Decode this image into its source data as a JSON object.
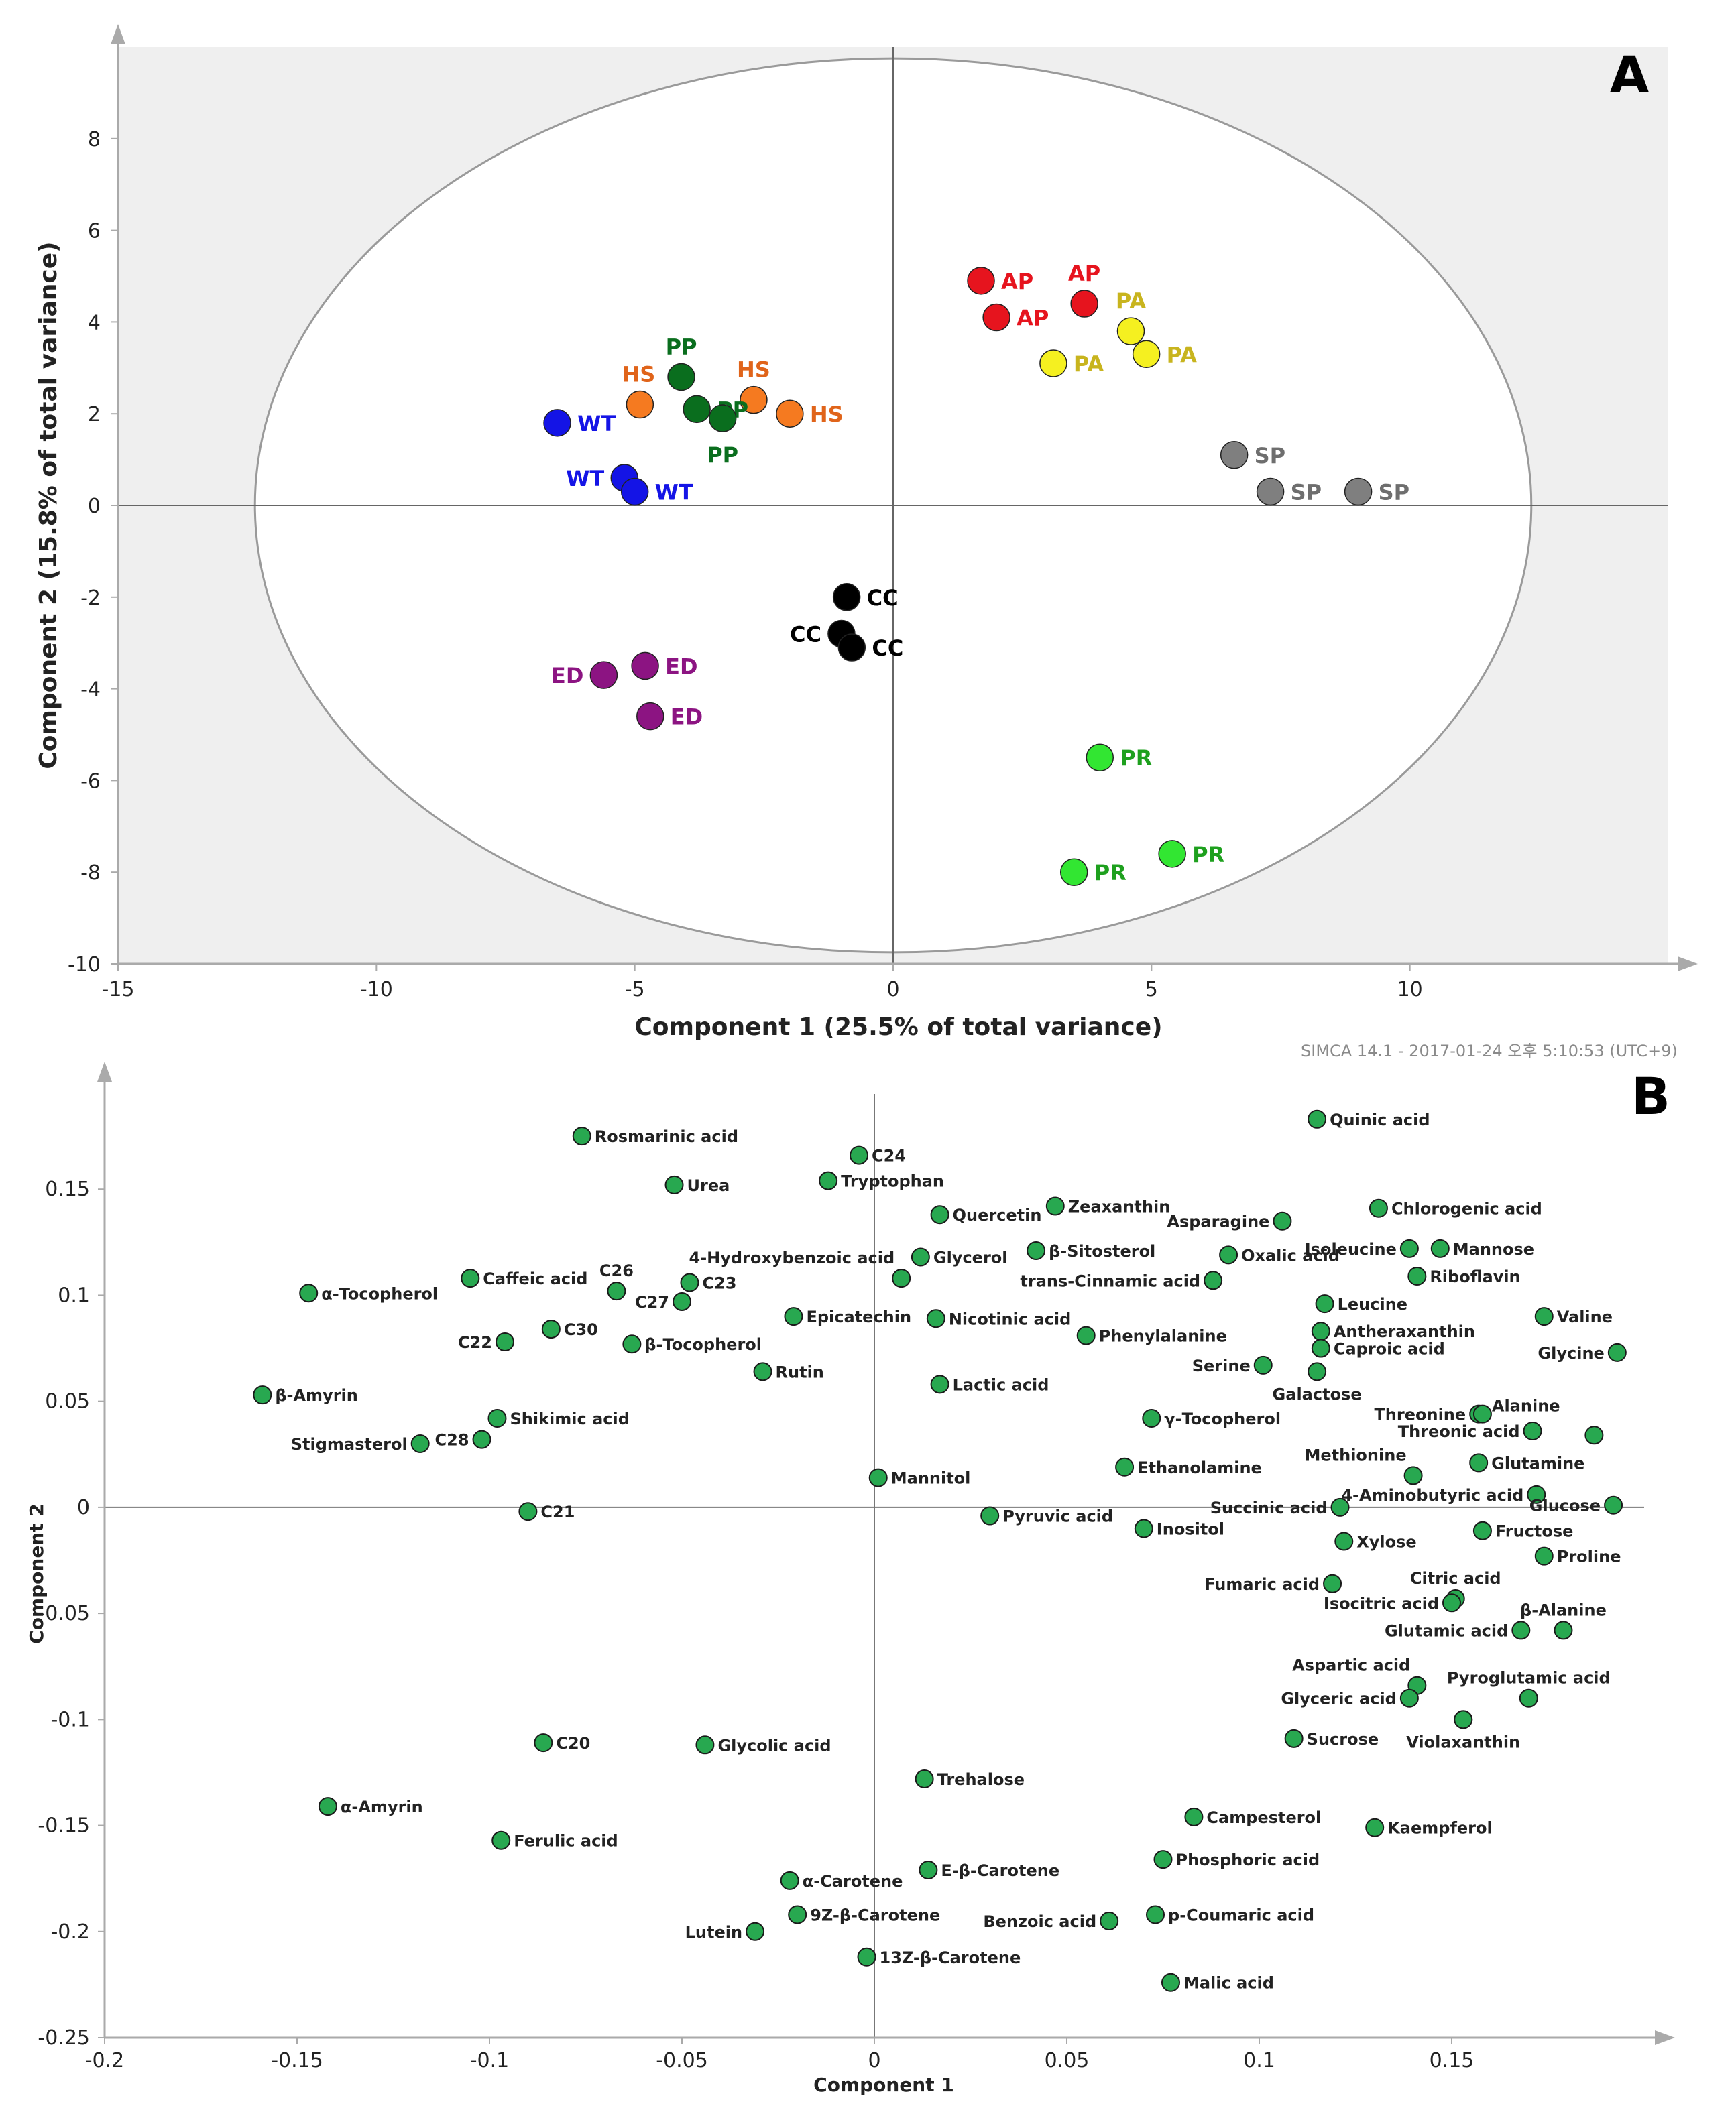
{
  "chart_data": [
    {
      "type": "scatter",
      "panel_label": "A",
      "title": "",
      "xlabel": "Component 1 (25.5% of total variance)",
      "ylabel": "Component 2 (15.8% of total variance)",
      "xlim": [
        -15,
        15
      ],
      "ylim": [
        -10,
        10
      ],
      "xticks": [
        -15,
        -10,
        -5,
        0,
        5,
        10
      ],
      "yticks": [
        8,
        6,
        4,
        2,
        0,
        -2,
        -4,
        -6,
        -8,
        -10
      ],
      "footer": "SIMCA 14.1 - 2017-01-24 오후 5:10:53 (UTC+9)",
      "ellipse": {
        "center": [
          0,
          0
        ],
        "radius_x": 12.35,
        "radius_y": 9.75
      },
      "colors": {
        "WT": "#1414e6",
        "HS": "#f57a20",
        "PP": "#0a6e1e",
        "AP": "#e6141e",
        "PA": "#f5f020",
        "SP": "#7f7f7f",
        "CC": "#000000",
        "ED": "#8c1482",
        "PR": "#32e632"
      },
      "label_colors": {
        "WT": "#1414e6",
        "HS": "#e0641a",
        "PP": "#0a6e1e",
        "AP": "#e6141e",
        "PA": "#c8b41e",
        "SP": "#6e6e6e",
        "CC": "#000000",
        "ED": "#8c1482",
        "PR": "#1ea01e"
      },
      "points": [
        {
          "group": "WT",
          "x": -6.5,
          "y": 1.8,
          "label": "WT",
          "side": "right"
        },
        {
          "group": "WT",
          "x": -5.2,
          "y": 0.6,
          "label": "WT",
          "side": "left"
        },
        {
          "group": "WT",
          "x": -5.0,
          "y": 0.3,
          "label": "WT",
          "side": "right"
        },
        {
          "group": "HS",
          "x": -4.9,
          "y": 2.2,
          "label": "HS",
          "side": "above-left"
        },
        {
          "group": "HS",
          "x": -2.7,
          "y": 2.3,
          "label": "HS",
          "side": "above"
        },
        {
          "group": "HS",
          "x": -2.0,
          "y": 2.0,
          "label": "HS",
          "side": "right"
        },
        {
          "group": "PP",
          "x": -4.1,
          "y": 2.8,
          "label": "PP",
          "side": "above"
        },
        {
          "group": "PP",
          "x": -3.8,
          "y": 2.1,
          "label": "PP",
          "side": "right"
        },
        {
          "group": "PP",
          "x": -3.3,
          "y": 1.9,
          "label": "PP",
          "side": "below"
        },
        {
          "group": "AP",
          "x": 1.7,
          "y": 4.9,
          "label": "AP",
          "side": "right"
        },
        {
          "group": "AP",
          "x": 2.0,
          "y": 4.1,
          "label": "AP",
          "side": "right"
        },
        {
          "group": "AP",
          "x": 3.7,
          "y": 4.4,
          "label": "AP",
          "side": "above"
        },
        {
          "group": "PA",
          "x": 3.1,
          "y": 3.1,
          "label": "PA",
          "side": "right"
        },
        {
          "group": "PA",
          "x": 4.6,
          "y": 3.8,
          "label": "PA",
          "side": "above"
        },
        {
          "group": "PA",
          "x": 4.9,
          "y": 3.3,
          "label": "PA",
          "side": "right"
        },
        {
          "group": "SP",
          "x": 6.6,
          "y": 1.1,
          "label": "SP",
          "side": "right"
        },
        {
          "group": "SP",
          "x": 7.3,
          "y": 0.3,
          "label": "SP",
          "side": "right"
        },
        {
          "group": "SP",
          "x": 9.0,
          "y": 0.3,
          "label": "SP",
          "side": "right"
        },
        {
          "group": "CC",
          "x": -0.9,
          "y": -2.0,
          "label": "CC",
          "side": "right"
        },
        {
          "group": "CC",
          "x": -1.0,
          "y": -2.8,
          "label": "CC",
          "side": "left"
        },
        {
          "group": "CC",
          "x": -0.8,
          "y": -3.1,
          "label": "CC",
          "side": "right"
        },
        {
          "group": "ED",
          "x": -5.6,
          "y": -3.7,
          "label": "ED",
          "side": "left"
        },
        {
          "group": "ED",
          "x": -4.8,
          "y": -3.5,
          "label": "ED",
          "side": "right"
        },
        {
          "group": "ED",
          "x": -4.7,
          "y": -4.6,
          "label": "ED",
          "side": "right"
        },
        {
          "group": "PR",
          "x": 4.0,
          "y": -5.5,
          "label": "PR",
          "side": "right"
        },
        {
          "group": "PR",
          "x": 3.5,
          "y": -8.0,
          "label": "PR",
          "side": "right"
        },
        {
          "group": "PR",
          "x": 5.4,
          "y": -7.6,
          "label": "PR",
          "side": "right"
        }
      ]
    },
    {
      "type": "scatter",
      "panel_label": "B",
      "title": "",
      "xlabel": "Component 1",
      "ylabel": "Component 2",
      "xlim": [
        -0.2,
        0.2
      ],
      "ylim": [
        -0.25,
        0.2
      ],
      "xticks": [
        -0.2,
        -0.15,
        -0.1,
        -0.05,
        0,
        0.05,
        0.1,
        0.15
      ],
      "yticks": [
        0.15,
        0.1,
        0.05,
        0,
        -0.05,
        -0.1,
        -0.15,
        -0.2,
        -0.25
      ],
      "point_color": "#28a850",
      "points": [
        {
          "label": "Rosmarinic acid",
          "x": -0.076,
          "y": 0.175,
          "side": "right"
        },
        {
          "label": "C24",
          "x": -0.004,
          "y": 0.166,
          "side": "right"
        },
        {
          "label": "Quinic acid",
          "x": 0.115,
          "y": 0.183,
          "side": "right"
        },
        {
          "label": "Urea",
          "x": -0.052,
          "y": 0.152,
          "side": "right"
        },
        {
          "label": "Tryptophan",
          "x": -0.012,
          "y": 0.154,
          "side": "right"
        },
        {
          "label": "Zeaxanthin",
          "x": 0.047,
          "y": 0.142,
          "side": "right"
        },
        {
          "label": "Quercetin",
          "x": 0.017,
          "y": 0.138,
          "side": "right"
        },
        {
          "label": "Chlorogenic acid",
          "x": 0.131,
          "y": 0.141,
          "side": "right"
        },
        {
          "label": "Asparagine",
          "x": 0.106,
          "y": 0.135,
          "side": "left"
        },
        {
          "label": "β-Sitosterol",
          "x": 0.042,
          "y": 0.121,
          "side": "right"
        },
        {
          "label": "Glycerol",
          "x": 0.012,
          "y": 0.118,
          "side": "right"
        },
        {
          "label": "4-Hydroxybenzoic acid",
          "x": 0.007,
          "y": 0.108,
          "side": "above-left"
        },
        {
          "label": "Oxalic acid",
          "x": 0.092,
          "y": 0.119,
          "side": "right"
        },
        {
          "label": "Isoleucine",
          "x": 0.139,
          "y": 0.122,
          "side": "left"
        },
        {
          "label": "Mannose",
          "x": 0.147,
          "y": 0.122,
          "side": "right"
        },
        {
          "label": "trans-Cinnamic acid",
          "x": 0.088,
          "y": 0.107,
          "side": "left"
        },
        {
          "label": "Riboflavin",
          "x": 0.141,
          "y": 0.109,
          "side": "right"
        },
        {
          "label": "Caffeic acid",
          "x": -0.105,
          "y": 0.108,
          "side": "right"
        },
        {
          "label": "C26",
          "x": -0.067,
          "y": 0.102,
          "side": "above"
        },
        {
          "label": "C23",
          "x": -0.048,
          "y": 0.106,
          "side": "right"
        },
        {
          "label": "C27",
          "x": -0.05,
          "y": 0.097,
          "side": "left"
        },
        {
          "label": "α-Tocopherol",
          "x": -0.147,
          "y": 0.101,
          "side": "right"
        },
        {
          "label": "Leucine",
          "x": 0.117,
          "y": 0.096,
          "side": "right"
        },
        {
          "label": "Valine",
          "x": 0.174,
          "y": 0.09,
          "side": "right"
        },
        {
          "label": "Epicatechin",
          "x": -0.021,
          "y": 0.09,
          "side": "right"
        },
        {
          "label": "Nicotinic acid",
          "x": 0.016,
          "y": 0.089,
          "side": "right"
        },
        {
          "label": "C30",
          "x": -0.084,
          "y": 0.084,
          "side": "right"
        },
        {
          "label": "Antheraxanthin",
          "x": 0.116,
          "y": 0.083,
          "side": "right"
        },
        {
          "label": "Phenylalanine",
          "x": 0.055,
          "y": 0.081,
          "side": "right"
        },
        {
          "label": "Caproic acid",
          "x": 0.116,
          "y": 0.075,
          "side": "right"
        },
        {
          "label": "C22",
          "x": -0.096,
          "y": 0.078,
          "side": "left"
        },
        {
          "label": "β-Tocopherol",
          "x": -0.063,
          "y": 0.077,
          "side": "right"
        },
        {
          "label": "Glycine",
          "x": 0.193,
          "y": 0.073,
          "side": "left"
        },
        {
          "label": "Serine",
          "x": 0.101,
          "y": 0.067,
          "side": "left"
        },
        {
          "label": "Galactose",
          "x": 0.115,
          "y": 0.064,
          "side": "below"
        },
        {
          "label": "Rutin",
          "x": -0.029,
          "y": 0.064,
          "side": "right"
        },
        {
          "label": "β-Amyrin",
          "x": -0.159,
          "y": 0.053,
          "side": "right"
        },
        {
          "label": "Lactic acid",
          "x": 0.017,
          "y": 0.058,
          "side": "right"
        },
        {
          "label": "Shikimic acid",
          "x": -0.098,
          "y": 0.042,
          "side": "right"
        },
        {
          "label": "γ-Tocopherol",
          "x": 0.072,
          "y": 0.042,
          "side": "right"
        },
        {
          "label": "Threonine",
          "x": 0.157,
          "y": 0.044,
          "side": "left"
        },
        {
          "label": "Alanine",
          "x": 0.158,
          "y": 0.044,
          "side": "above-right"
        },
        {
          "label": "Threonic acid",
          "x": 0.171,
          "y": 0.036,
          "side": "left"
        },
        {
          "label": "",
          "x": 0.187,
          "y": 0.034,
          "side": "none"
        },
        {
          "label": "C28",
          "x": -0.102,
          "y": 0.032,
          "side": "left"
        },
        {
          "label": "Stigmasterol",
          "x": -0.118,
          "y": 0.03,
          "side": "left"
        },
        {
          "label": "Methionine",
          "x": 0.14,
          "y": 0.015,
          "side": "above-left"
        },
        {
          "label": "Glutamine",
          "x": 0.157,
          "y": 0.021,
          "side": "right"
        },
        {
          "label": "Ethanolamine",
          "x": 0.065,
          "y": 0.019,
          "side": "right"
        },
        {
          "label": "Mannitol",
          "x": 0.001,
          "y": 0.014,
          "side": "right"
        },
        {
          "label": "4-Aminobutyric acid",
          "x": 0.172,
          "y": 0.006,
          "side": "left"
        },
        {
          "label": "Glucose",
          "x": 0.192,
          "y": 0.001,
          "side": "left"
        },
        {
          "label": "Succinic acid",
          "x": 0.121,
          "y": 0.0,
          "side": "left"
        },
        {
          "label": "C21",
          "x": -0.09,
          "y": -0.002,
          "side": "right"
        },
        {
          "label": "Pyruvic acid",
          "x": 0.03,
          "y": -0.004,
          "side": "right"
        },
        {
          "label": "Inositol",
          "x": 0.07,
          "y": -0.01,
          "side": "right"
        },
        {
          "label": "Fructose",
          "x": 0.158,
          "y": -0.011,
          "side": "right"
        },
        {
          "label": "Xylose",
          "x": 0.122,
          "y": -0.016,
          "side": "right"
        },
        {
          "label": "Proline",
          "x": 0.174,
          "y": -0.023,
          "side": "right"
        },
        {
          "label": "Fumaric acid",
          "x": 0.119,
          "y": -0.036,
          "side": "left"
        },
        {
          "label": "Citric acid",
          "x": 0.151,
          "y": -0.043,
          "side": "above"
        },
        {
          "label": "Isocitric acid",
          "x": 0.15,
          "y": -0.045,
          "side": "left"
        },
        {
          "label": "β-Alanine",
          "x": 0.179,
          "y": -0.058,
          "side": "above"
        },
        {
          "label": "Glutamic acid",
          "x": 0.168,
          "y": -0.058,
          "side": "left"
        },
        {
          "label": "Aspartic acid",
          "x": 0.141,
          "y": -0.084,
          "side": "above-left"
        },
        {
          "label": "Pyroglutamic acid",
          "x": 0.17,
          "y": -0.09,
          "side": "above"
        },
        {
          "label": "Glyceric acid",
          "x": 0.139,
          "y": -0.09,
          "side": "left"
        },
        {
          "label": "",
          "x": 0.153,
          "y": -0.1,
          "side": "none"
        },
        {
          "label": "Violaxanthin",
          "x": 0.153,
          "y": -0.1,
          "side": "below"
        },
        {
          "label": "Sucrose",
          "x": 0.109,
          "y": -0.109,
          "side": "right"
        },
        {
          "label": "C20",
          "x": -0.086,
          "y": -0.111,
          "side": "right"
        },
        {
          "label": "Glycolic acid",
          "x": -0.044,
          "y": -0.112,
          "side": "right"
        },
        {
          "label": "Trehalose",
          "x": 0.013,
          "y": -0.128,
          "side": "right"
        },
        {
          "label": "α-Amyrin",
          "x": -0.142,
          "y": -0.141,
          "side": "right"
        },
        {
          "label": "Campesterol",
          "x": 0.083,
          "y": -0.146,
          "side": "right"
        },
        {
          "label": "Kaempferol",
          "x": 0.13,
          "y": -0.151,
          "side": "right"
        },
        {
          "label": "Ferulic acid",
          "x": -0.097,
          "y": -0.157,
          "side": "right"
        },
        {
          "label": "Phosphoric acid",
          "x": 0.075,
          "y": -0.166,
          "side": "right"
        },
        {
          "label": "E-β-Carotene",
          "x": 0.014,
          "y": -0.171,
          "side": "right"
        },
        {
          "label": "α-Carotene",
          "x": -0.022,
          "y": -0.176,
          "side": "right"
        },
        {
          "label": "9Z-β-Carotene",
          "x": -0.02,
          "y": -0.192,
          "side": "right"
        },
        {
          "label": "p-Coumaric acid",
          "x": 0.073,
          "y": -0.192,
          "side": "right"
        },
        {
          "label": "Benzoic acid",
          "x": 0.061,
          "y": -0.195,
          "side": "left"
        },
        {
          "label": "Lutein",
          "x": -0.031,
          "y": -0.2,
          "side": "left"
        },
        {
          "label": "13Z-β-Carotene",
          "x": -0.002,
          "y": -0.212,
          "side": "right"
        },
        {
          "label": "Malic acid",
          "x": 0.077,
          "y": -0.224,
          "side": "right"
        }
      ]
    }
  ]
}
